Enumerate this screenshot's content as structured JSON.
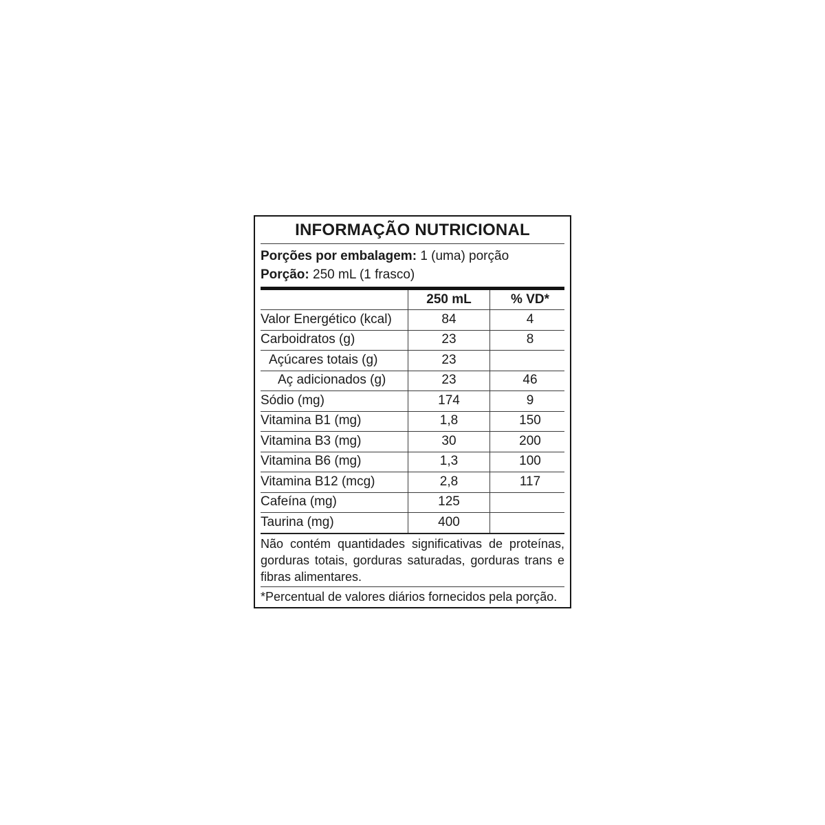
{
  "table": {
    "title": "INFORMAÇÃO NUTRICIONAL",
    "serving_lines": [
      {
        "label": "Porções por embalagem:",
        "value": "1 (uma) porção"
      },
      {
        "label": "Porção:",
        "value": "250 mL (1 frasco)"
      }
    ],
    "columns": [
      "",
      "250 mL",
      "% VD*"
    ],
    "rows": [
      {
        "label": "Valor Energético (kcal)",
        "amount": "84",
        "vd": "4",
        "indent": 0
      },
      {
        "label": "Carboidratos (g)",
        "amount": "23",
        "vd": "8",
        "indent": 0
      },
      {
        "label": "Açúcares totais (g)",
        "amount": "23",
        "vd": "",
        "indent": 1
      },
      {
        "label": "Aç adicionados (g)",
        "amount": "23",
        "vd": "46",
        "indent": 2
      },
      {
        "label": "Sódio (mg)",
        "amount": "174",
        "vd": "9",
        "indent": 0
      },
      {
        "label": "Vitamina B1 (mg)",
        "amount": "1,8",
        "vd": "150",
        "indent": 0
      },
      {
        "label": "Vitamina B3 (mg)",
        "amount": "30",
        "vd": "200",
        "indent": 0
      },
      {
        "label": "Vitamina B6 (mg)",
        "amount": "1,3",
        "vd": "100",
        "indent": 0
      },
      {
        "label": "Vitamina B12 (mcg)",
        "amount": "2,8",
        "vd": "117",
        "indent": 0
      },
      {
        "label": "Cafeína (mg)",
        "amount": "125",
        "vd": "",
        "indent": 0
      },
      {
        "label": "Taurina (mg)",
        "amount": "400",
        "vd": "",
        "indent": 0
      }
    ],
    "note_paragraph": "Não contém quantidades significativas de proteínas, gorduras totais, gorduras saturadas, gorduras trans e fibras alimentares.",
    "footnote": "*Percentual de valores diários fornecidos pela porção.",
    "colors": {
      "background": "#ffffff",
      "text": "#1a1a1a",
      "line_thin": "#3a3a3a",
      "line_thick": "#131313"
    }
  }
}
